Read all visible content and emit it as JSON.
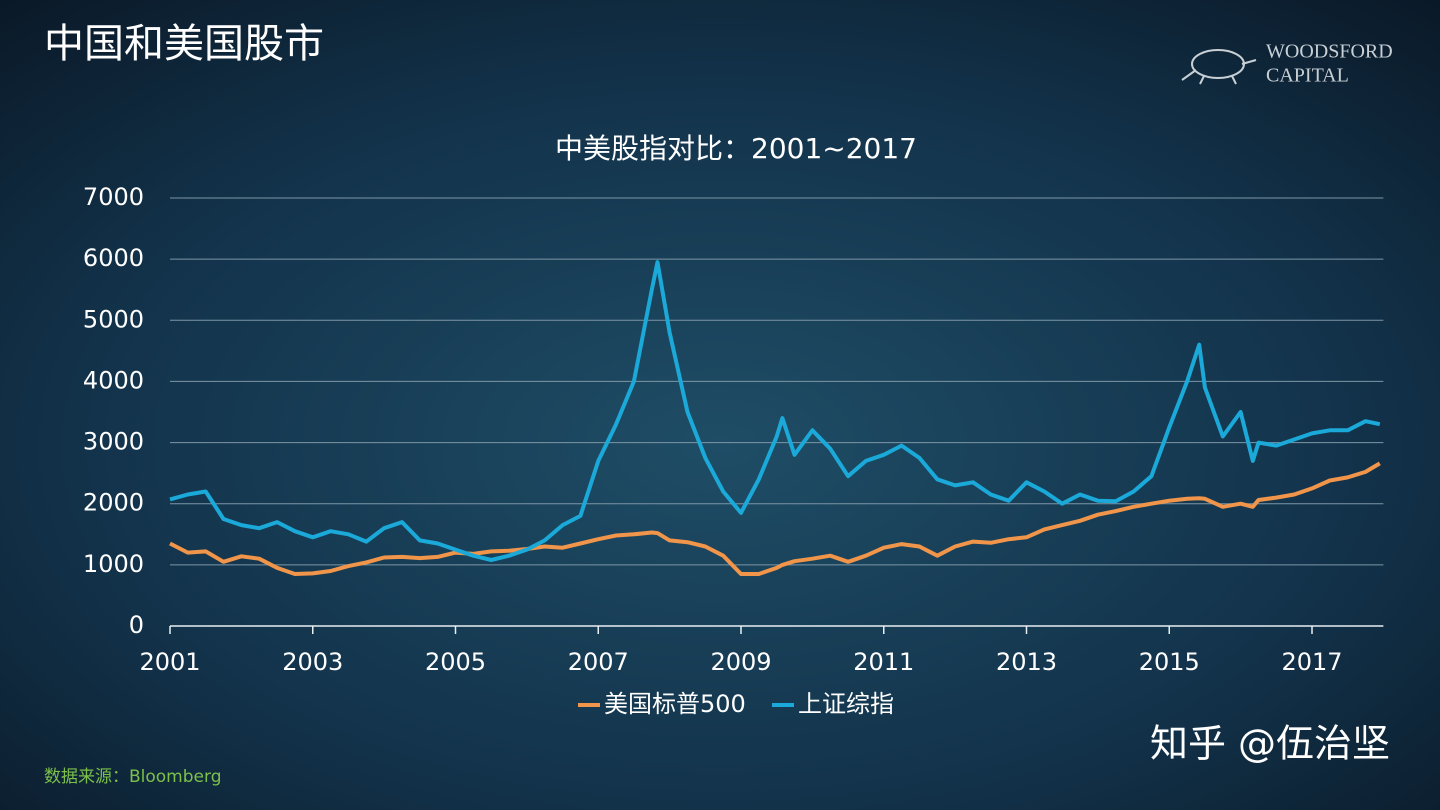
{
  "header": {
    "title": "中国和美国股市",
    "logo_line1": "WOODSFORD",
    "logo_line2": "CAPITAL"
  },
  "chart_data": {
    "type": "line",
    "title": "中美股指对比：2001~2017",
    "x": [
      2001,
      2001.25,
      2001.5,
      2001.75,
      2002,
      2002.25,
      2002.5,
      2002.75,
      2003,
      2003.25,
      2003.5,
      2003.75,
      2004,
      2004.25,
      2004.5,
      2004.75,
      2005,
      2005.25,
      2005.5,
      2005.75,
      2006,
      2006.25,
      2006.5,
      2006.75,
      2007,
      2007.25,
      2007.5,
      2007.75,
      2007.83,
      2008,
      2008.25,
      2008.5,
      2008.75,
      2009,
      2009.25,
      2009.5,
      2009.58,
      2009.75,
      2010,
      2010.25,
      2010.5,
      2010.75,
      2011,
      2011.25,
      2011.5,
      2011.75,
      2012,
      2012.25,
      2012.5,
      2012.75,
      2013,
      2013.25,
      2013.5,
      2013.75,
      2014,
      2014.25,
      2014.5,
      2014.75,
      2015,
      2015.25,
      2015.42,
      2015.5,
      2015.75,
      2016,
      2016.17,
      2016.25,
      2016.5,
      2016.75,
      2017,
      2017.25,
      2017.5,
      2017.75,
      2017.95
    ],
    "series": [
      {
        "name": "美国标普500",
        "color": "#f0954a",
        "values": [
          1350,
          1200,
          1220,
          1050,
          1140,
          1100,
          950,
          850,
          860,
          900,
          980,
          1040,
          1120,
          1130,
          1110,
          1130,
          1200,
          1180,
          1220,
          1230,
          1260,
          1300,
          1280,
          1350,
          1420,
          1480,
          1500,
          1530,
          1520,
          1400,
          1370,
          1300,
          1150,
          850,
          850,
          950,
          1000,
          1060,
          1100,
          1150,
          1050,
          1150,
          1280,
          1340,
          1300,
          1150,
          1300,
          1380,
          1360,
          1420,
          1450,
          1580,
          1650,
          1720,
          1820,
          1880,
          1950,
          2000,
          2050,
          2080,
          2090,
          2080,
          1950,
          2000,
          1950,
          2060,
          2100,
          2150,
          2250,
          2380,
          2430,
          2520,
          2660
        ]
      },
      {
        "name": "上证综指",
        "color": "#1aa9d8",
        "values": [
          2070,
          2150,
          2200,
          1750,
          1650,
          1600,
          1700,
          1550,
          1450,
          1550,
          1500,
          1380,
          1600,
          1700,
          1400,
          1350,
          1250,
          1150,
          1080,
          1150,
          1250,
          1400,
          1650,
          1800,
          2700,
          3300,
          4000,
          5500,
          5950,
          4800,
          3500,
          2750,
          2200,
          1850,
          2400,
          3100,
          3400,
          2800,
          3200,
          2900,
          2450,
          2700,
          2800,
          2950,
          2750,
          2400,
          2300,
          2350,
          2150,
          2050,
          2350,
          2200,
          2000,
          2150,
          2050,
          2040,
          2200,
          2450,
          3250,
          4000,
          4600,
          3900,
          3100,
          3500,
          2700,
          3000,
          2950,
          3050,
          3150,
          3200,
          3200,
          3350,
          3300
        ]
      }
    ],
    "xlim": [
      2001,
      2018
    ],
    "xticks": [
      2001,
      2003,
      2005,
      2007,
      2009,
      2011,
      2013,
      2015,
      2017
    ],
    "ylim": [
      0,
      7000
    ],
    "yticks": [
      0,
      1000,
      2000,
      3000,
      4000,
      5000,
      6000,
      7000
    ],
    "grid": true,
    "legend": "bottom"
  },
  "footer": {
    "source": "数据来源：Bloomberg",
    "watermark": "知乎 @伍治坚"
  }
}
